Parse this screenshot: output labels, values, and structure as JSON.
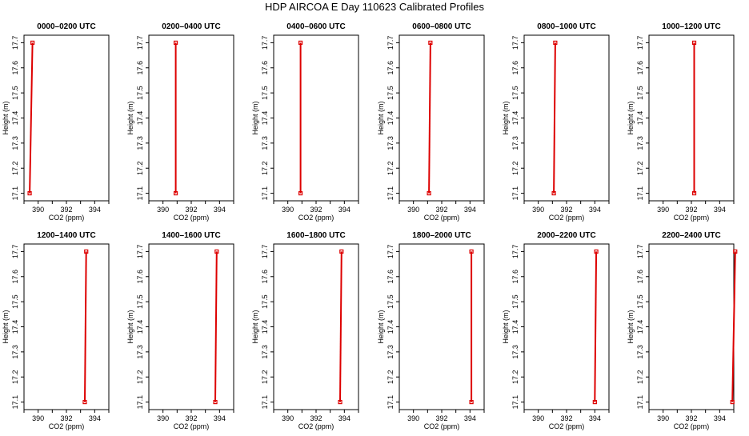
{
  "title": "HDP AIRCOA E  Day 110623  Calibrated Profiles",
  "colors": {
    "profile": "#dd0000",
    "axis": "#000000",
    "background": "#ffffff"
  },
  "chart_data": [
    {
      "type": "line",
      "title": "0000–0200 UTC",
      "xlabel": "CO2 (ppm)",
      "ylabel": "Height (m)",
      "xlim": [
        389,
        395
      ],
      "ylim": [
        17.07,
        17.73
      ],
      "x_ticks": [
        390,
        392,
        394
      ],
      "y_ticks": [
        17.1,
        17.2,
        17.3,
        17.4,
        17.5,
        17.6,
        17.7
      ],
      "grid": false,
      "series": [
        {
          "x": [
            389.4,
            389.6
          ],
          "y": [
            17.1,
            17.7
          ]
        }
      ]
    },
    {
      "type": "line",
      "title": "0200–0400 UTC",
      "xlabel": "CO2 (ppm)",
      "ylabel": "Height (m)",
      "xlim": [
        389,
        395
      ],
      "ylim": [
        17.07,
        17.73
      ],
      "x_ticks": [
        390,
        392,
        394
      ],
      "y_ticks": [
        17.1,
        17.2,
        17.3,
        17.4,
        17.5,
        17.6,
        17.7
      ],
      "grid": false,
      "series": [
        {
          "x": [
            390.9,
            390.9
          ],
          "y": [
            17.1,
            17.7
          ]
        }
      ]
    },
    {
      "type": "line",
      "title": "0400–0600 UTC",
      "xlabel": "CO2 (ppm)",
      "ylabel": "Height (m)",
      "xlim": [
        389,
        395
      ],
      "ylim": [
        17.07,
        17.73
      ],
      "x_ticks": [
        390,
        392,
        394
      ],
      "y_ticks": [
        17.1,
        17.2,
        17.3,
        17.4,
        17.5,
        17.6,
        17.7
      ],
      "grid": false,
      "series": [
        {
          "x": [
            390.9,
            390.9
          ],
          "y": [
            17.1,
            17.7
          ]
        }
      ]
    },
    {
      "type": "line",
      "title": "0600–0800 UTC",
      "xlabel": "CO2 (ppm)",
      "ylabel": "Height (m)",
      "xlim": [
        389,
        395
      ],
      "ylim": [
        17.07,
        17.73
      ],
      "x_ticks": [
        390,
        392,
        394
      ],
      "y_ticks": [
        17.1,
        17.2,
        17.3,
        17.4,
        17.5,
        17.6,
        17.7
      ],
      "grid": false,
      "series": [
        {
          "x": [
            391.1,
            391.2
          ],
          "y": [
            17.1,
            17.7
          ]
        }
      ]
    },
    {
      "type": "line",
      "title": "0800–1000 UTC",
      "xlabel": "CO2 (ppm)",
      "ylabel": "Height (m)",
      "xlim": [
        389,
        395
      ],
      "ylim": [
        17.07,
        17.73
      ],
      "x_ticks": [
        390,
        392,
        394
      ],
      "y_ticks": [
        17.1,
        17.2,
        17.3,
        17.4,
        17.5,
        17.6,
        17.7
      ],
      "grid": false,
      "series": [
        {
          "x": [
            391.1,
            391.2
          ],
          "y": [
            17.1,
            17.7
          ]
        }
      ]
    },
    {
      "type": "line",
      "title": "1000–1200 UTC",
      "xlabel": "CO2 (ppm)",
      "ylabel": "Height (m)",
      "xlim": [
        389,
        395
      ],
      "ylim": [
        17.07,
        17.73
      ],
      "x_ticks": [
        390,
        392,
        394
      ],
      "y_ticks": [
        17.1,
        17.2,
        17.3,
        17.4,
        17.5,
        17.6,
        17.7
      ],
      "grid": false,
      "series": [
        {
          "x": [
            392.2,
            392.2
          ],
          "y": [
            17.1,
            17.7
          ]
        }
      ]
    },
    {
      "type": "line",
      "title": "1200–1400 UTC",
      "xlabel": "CO2 (ppm)",
      "ylabel": "Height (m)",
      "xlim": [
        389,
        395
      ],
      "ylim": [
        17.07,
        17.73
      ],
      "x_ticks": [
        390,
        392,
        394
      ],
      "y_ticks": [
        17.1,
        17.2,
        17.3,
        17.4,
        17.5,
        17.6,
        17.7
      ],
      "grid": false,
      "series": [
        {
          "x": [
            393.3,
            393.4
          ],
          "y": [
            17.1,
            17.7
          ]
        }
      ]
    },
    {
      "type": "line",
      "title": "1400–1600 UTC",
      "xlabel": "CO2 (ppm)",
      "ylabel": "Height (m)",
      "xlim": [
        389,
        395
      ],
      "ylim": [
        17.07,
        17.73
      ],
      "x_ticks": [
        390,
        392,
        394
      ],
      "y_ticks": [
        17.1,
        17.2,
        17.3,
        17.4,
        17.5,
        17.6,
        17.7
      ],
      "grid": false,
      "series": [
        {
          "x": [
            393.7,
            393.8
          ],
          "y": [
            17.1,
            17.7
          ]
        }
      ]
    },
    {
      "type": "line",
      "title": "1600–1800 UTC",
      "xlabel": "CO2 (ppm)",
      "ylabel": "Height (m)",
      "xlim": [
        389,
        395
      ],
      "ylim": [
        17.07,
        17.73
      ],
      "x_ticks": [
        390,
        392,
        394
      ],
      "y_ticks": [
        17.1,
        17.2,
        17.3,
        17.4,
        17.5,
        17.6,
        17.7
      ],
      "grid": false,
      "series": [
        {
          "x": [
            393.7,
            393.8
          ],
          "y": [
            17.1,
            17.7
          ]
        }
      ]
    },
    {
      "type": "line",
      "title": "1800–2000 UTC",
      "xlabel": "CO2 (ppm)",
      "ylabel": "Height (m)",
      "xlim": [
        389,
        395
      ],
      "ylim": [
        17.07,
        17.73
      ],
      "x_ticks": [
        390,
        392,
        394
      ],
      "y_ticks": [
        17.1,
        17.2,
        17.3,
        17.4,
        17.5,
        17.6,
        17.7
      ],
      "grid": false,
      "series": [
        {
          "x": [
            394.1,
            394.1
          ],
          "y": [
            17.1,
            17.7
          ]
        }
      ]
    },
    {
      "type": "line",
      "title": "2000–2200 UTC",
      "xlabel": "CO2 (ppm)",
      "ylabel": "Height (m)",
      "xlim": [
        389,
        395
      ],
      "ylim": [
        17.07,
        17.73
      ],
      "x_ticks": [
        390,
        392,
        394
      ],
      "y_ticks": [
        17.1,
        17.2,
        17.3,
        17.4,
        17.5,
        17.6,
        17.7
      ],
      "grid": false,
      "series": [
        {
          "x": [
            394.0,
            394.1
          ],
          "y": [
            17.1,
            17.7
          ]
        }
      ]
    },
    {
      "type": "line",
      "title": "2200–2400 UTC",
      "xlabel": "CO2 (ppm)",
      "ylabel": "Height (m)",
      "xlim": [
        389,
        395
      ],
      "ylim": [
        17.07,
        17.73
      ],
      "x_ticks": [
        390,
        392,
        394
      ],
      "y_ticks": [
        17.1,
        17.2,
        17.3,
        17.4,
        17.5,
        17.6,
        17.7
      ],
      "grid": false,
      "series": [
        {
          "x": [
            394.9,
            395.1
          ],
          "y": [
            17.1,
            17.7
          ]
        }
      ]
    }
  ]
}
